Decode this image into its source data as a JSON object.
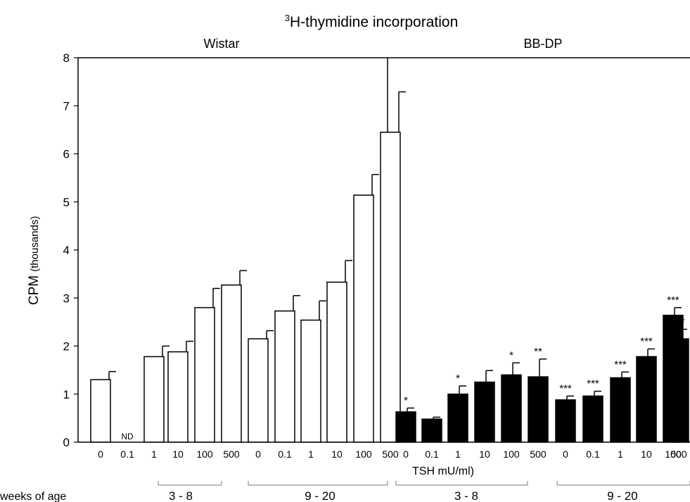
{
  "chart_data": {
    "type": "bar",
    "title_sup": "3",
    "title_main": "H-thymidine incorporation",
    "ylabel_main": "CPM",
    "ylabel_unit": "(thousands)",
    "xlabel": "TSH mU/ml)",
    "ylim": [
      0,
      8
    ],
    "yticks": [
      "0",
      "1",
      "2",
      "3",
      "4",
      "5",
      "6",
      "7",
      "8"
    ],
    "grid": false,
    "strains": [
      "Wistar",
      "BB-DP"
    ],
    "weeks_label": "weeks of age",
    "age_groups": [
      "3 - 8",
      "9 - 20",
      "3 - 8",
      "9 - 20"
    ],
    "categories": [
      "0",
      "0.1",
      "1",
      "10",
      "100",
      "500"
    ],
    "series": [
      {
        "strain": "Wistar",
        "age": "3 - 8",
        "fill": "white",
        "values": [
          1.3,
          null,
          1.78,
          1.88,
          2.8,
          3.27
        ],
        "errors": [
          0.17,
          null,
          0.22,
          0.22,
          0.4,
          0.3
        ],
        "annotations": [
          "",
          "ND",
          "",
          "",
          "",
          ""
        ]
      },
      {
        "strain": "Wistar",
        "age": "9 - 20",
        "fill": "white",
        "values": [
          2.15,
          2.73,
          2.54,
          3.33,
          5.14,
          6.45
        ],
        "errors": [
          0.17,
          0.32,
          0.4,
          0.45,
          0.43,
          0.84
        ],
        "annotations": [
          "",
          "",
          "",
          "",
          "",
          ""
        ]
      },
      {
        "strain": "BB-DP",
        "age": "3 - 8",
        "fill": "black",
        "values": [
          0.63,
          0.48,
          1.0,
          1.25,
          1.4,
          1.36
        ],
        "errors": [
          0.08,
          0.04,
          0.17,
          0.24,
          0.25,
          0.37
        ],
        "annotations": [
          "*",
          "",
          "*",
          "",
          "*",
          "**"
        ]
      },
      {
        "strain": "BB-DP",
        "age": "9 - 20",
        "fill": "black",
        "values": [
          0.88,
          0.96,
          1.34,
          1.78,
          2.64,
          2.15
        ],
        "errors": [
          0.08,
          0.1,
          0.12,
          0.16,
          0.16,
          0.2
        ],
        "annotations": [
          "***",
          "***",
          "***",
          "***",
          "***",
          "***"
        ]
      }
    ]
  }
}
